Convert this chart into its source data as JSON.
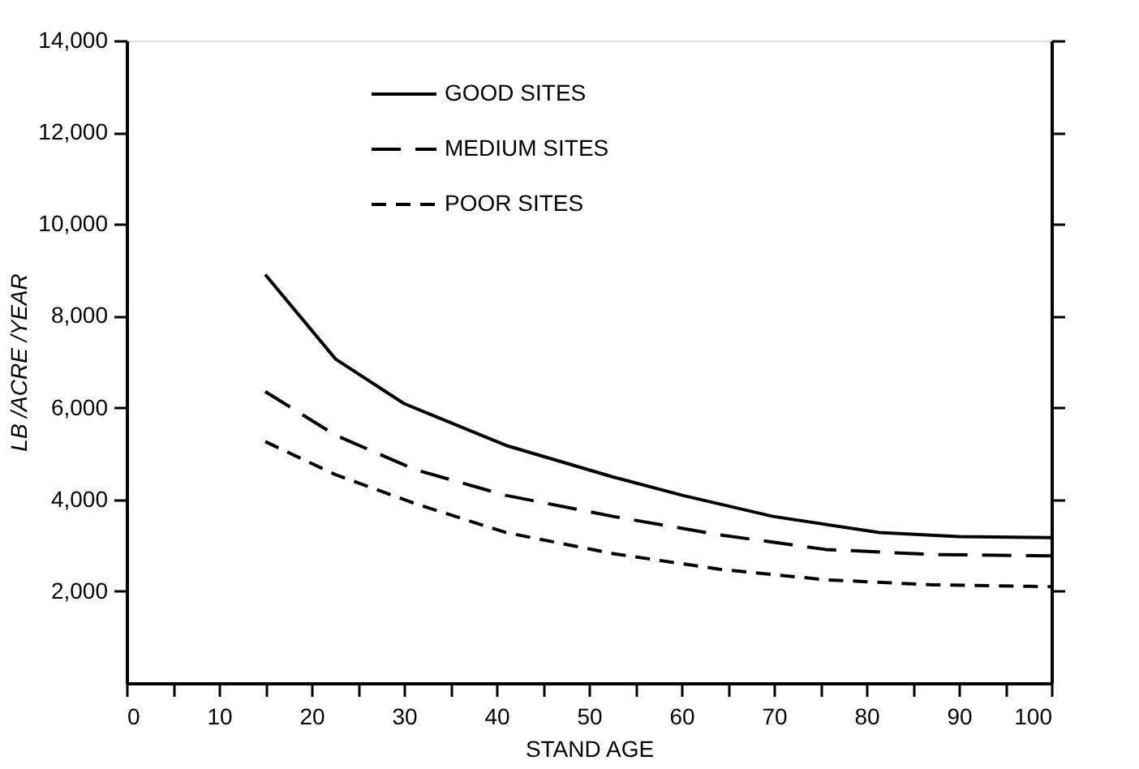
{
  "chart_data": {
    "type": "line",
    "xlabel": "STAND AGE",
    "ylabel": "LB /ACRE /YEAR",
    "xlim": [
      0,
      100
    ],
    "ylim": [
      0,
      14000
    ],
    "xticks": [
      0,
      {
        "value": 5,
        "label": null
      },
      10,
      {
        "value": 15,
        "label": null
      },
      20,
      {
        "value": 25,
        "label": null
      },
      30,
      {
        "value": 35,
        "label": null
      },
      40,
      {
        "value": 45,
        "label": null
      },
      50,
      {
        "value": 55,
        "label": null
      },
      60,
      {
        "value": 65,
        "label": null
      },
      70,
      {
        "value": 75,
        "label": null
      },
      80,
      {
        "value": 85,
        "label": null
      },
      90,
      {
        "value": 95,
        "label": null
      },
      100
    ],
    "yticks": [
      {
        "value": 2000,
        "label": "2,000"
      },
      {
        "value": 4000,
        "label": "4,000"
      },
      {
        "value": 6000,
        "label": "6,000"
      },
      {
        "value": 8000,
        "label": "8,000"
      },
      {
        "value": 10000,
        "label": "10,000"
      },
      {
        "value": 12000,
        "label": "12,000"
      },
      {
        "value": 14000,
        "label": "14,000"
      }
    ],
    "grid": false,
    "legend": "top",
    "marker": "none",
    "series": [
      {
        "name": "GOOD SITES",
        "color": "#000000",
        "line_style": "solid",
        "x": [
          15,
          22.6,
          30,
          41,
          52.6,
          60.1,
          69.9,
          81.4,
          90,
          100
        ],
        "values": [
          8900,
          7060,
          6090,
          5180,
          4490,
          4090,
          3630,
          3280,
          3190,
          3170
        ]
      },
      {
        "name": "MEDIUM SITES",
        "color": "#000000",
        "line_style": "dashed",
        "x": [
          15,
          22.6,
          31.2,
          41,
          52.6,
          64.1,
          75.6,
          87.1,
          100
        ],
        "values": [
          6350,
          5400,
          4650,
          4090,
          3630,
          3230,
          2910,
          2800,
          2770
        ]
      },
      {
        "name": "POOR SITES",
        "color": "#000000",
        "line_style": "dashed",
        "x": [
          15,
          22.6,
          31.2,
          41,
          52.6,
          64.1,
          75.6,
          87.1,
          100
        ],
        "values": [
          5260,
          4540,
          3910,
          3280,
          2820,
          2480,
          2250,
          2140,
          2100
        ]
      }
    ]
  }
}
